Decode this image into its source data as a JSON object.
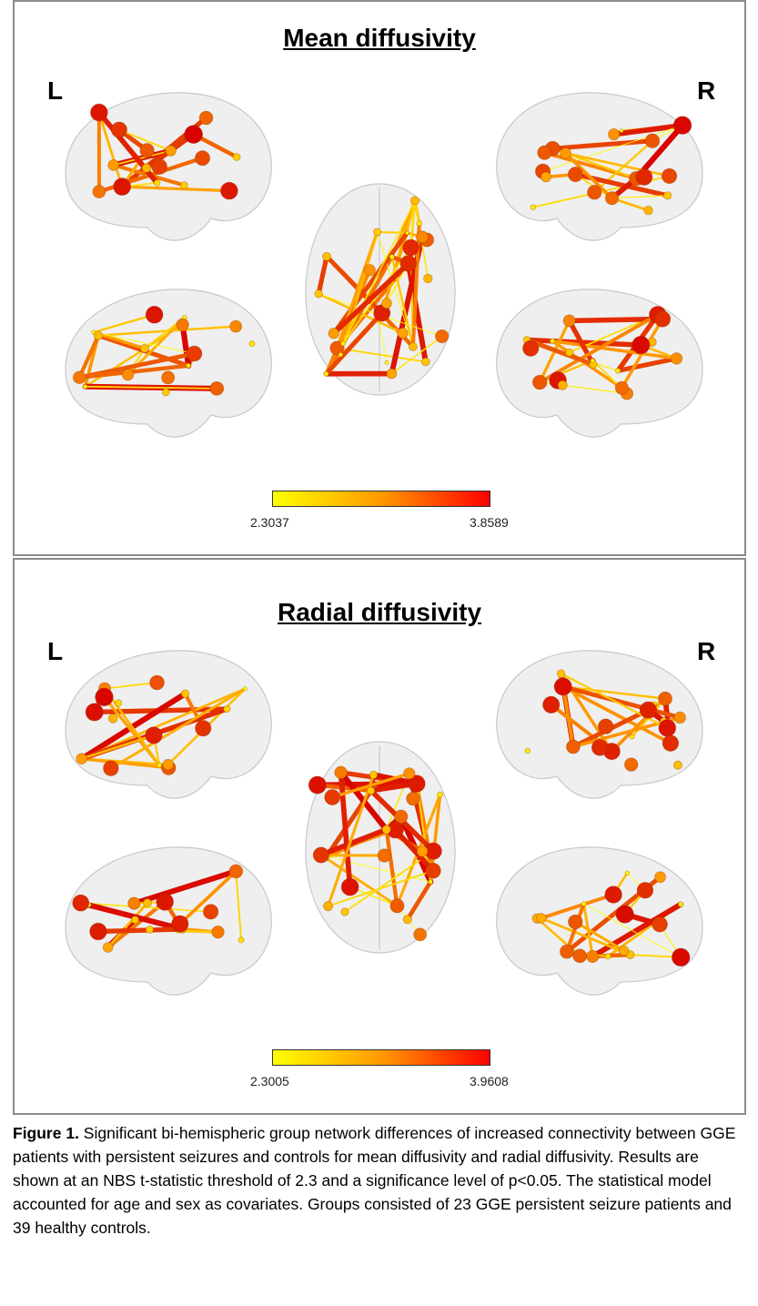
{
  "panels": [
    {
      "title": "Mean diffusivity",
      "left_label": "L",
      "right_label": "R",
      "colorbar": {
        "min": "2.3037",
        "max": "3.8589",
        "colors": [
          "#ffff00",
          "#ff9900",
          "#ff0000"
        ]
      }
    },
    {
      "title": "Radial diffusivity",
      "left_label": "L",
      "right_label": "R",
      "colorbar": {
        "min": "2.3005",
        "max": "3.9608",
        "colors": [
          "#ffff00",
          "#ff9900",
          "#ff0000"
        ]
      }
    }
  ],
  "caption": {
    "label": "Figure 1.",
    "text": " Significant bi-hemispheric group network differences of increased connectivity between GGE patients with persistent seizures and controls for mean diffusivity and radial diffusivity.  Results are shown at an NBS t-statistic threshold of 2.3 and a significance level of p<0.05. The statistical model accounted for age and sex as covariates. Groups consisted of 23 GGE persistent seizure patients and 39 healthy controls."
  }
}
